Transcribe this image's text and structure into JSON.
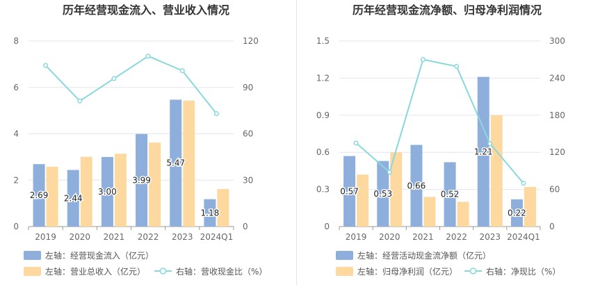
{
  "chart_data": [
    {
      "type": "bar",
      "title": "历年经营现金流入、营业收入情况",
      "categories": [
        "2019",
        "2020",
        "2021",
        "2022",
        "2023",
        "2024Q1"
      ],
      "y_left": {
        "min": 0,
        "max": 8,
        "ticks": [
          0,
          2,
          4,
          6,
          8
        ]
      },
      "y_right": {
        "min": 0,
        "max": 120,
        "ticks": [
          0,
          30,
          60,
          90,
          120
        ]
      },
      "series": [
        {
          "name": "左轴：经营现金流入（亿元）",
          "kind": "bar",
          "axis": "left",
          "color": "#8eaedb",
          "values": [
            2.69,
            2.44,
            3.0,
            3.99,
            5.47,
            1.18
          ],
          "labels": [
            "2.69",
            "2.44",
            "3.00",
            "3.99",
            "5.47",
            "1.18"
          ]
        },
        {
          "name": "左轴：营业总收入（亿元）",
          "kind": "bar",
          "axis": "left",
          "color": "#fdd9a0",
          "values": [
            2.58,
            3.01,
            3.14,
            3.62,
            5.43,
            1.62
          ]
        },
        {
          "name": "右轴：营收现金比（%）",
          "kind": "line",
          "axis": "right",
          "color": "#88d8dc",
          "values": [
            104.2,
            81.2,
            95.7,
            110.2,
            100.8,
            73.0
          ]
        }
      ]
    },
    {
      "type": "bar",
      "title": "历年经营现金流净额、归母净利润情况",
      "categories": [
        "2019",
        "2020",
        "2021",
        "2022",
        "2023",
        "2024Q1"
      ],
      "y_left": {
        "min": 0,
        "max": 1.5,
        "ticks": [
          0,
          0.3,
          0.6,
          0.9,
          1.2,
          1.5
        ],
        "tick_labels": [
          "0",
          "0.3",
          "0.6",
          "0.9",
          "1.2",
          "1.5"
        ]
      },
      "y_right": {
        "min": 0,
        "max": 300,
        "ticks": [
          0,
          60,
          120,
          180,
          240,
          300
        ]
      },
      "series": [
        {
          "name": "左轴：经营活动现金流净额（亿元）",
          "kind": "bar",
          "axis": "left",
          "color": "#8eaedb",
          "values": [
            0.57,
            0.53,
            0.66,
            0.52,
            1.21,
            0.22
          ],
          "labels": [
            "0.57",
            "0.53",
            "0.66",
            "0.52",
            "1.21",
            "0.22"
          ]
        },
        {
          "name": "左轴：归母净利润（亿元）",
          "kind": "bar",
          "axis": "left",
          "color": "#fdd9a0",
          "values": [
            0.42,
            0.6,
            0.24,
            0.2,
            0.9,
            0.32
          ]
        },
        {
          "name": "右轴：净现比（%）",
          "kind": "line",
          "axis": "right",
          "color": "#88d8dc",
          "values": [
            135,
            88,
            270,
            259,
            134,
            70
          ]
        }
      ]
    }
  ]
}
